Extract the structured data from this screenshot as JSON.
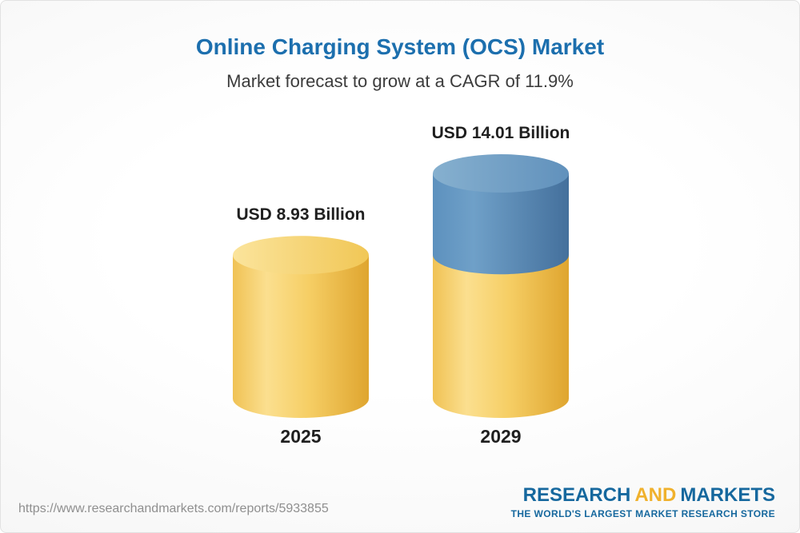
{
  "header": {
    "title": "Online Charging System (OCS) Market",
    "subtitle": "Market forecast to grow at a CAGR of 11.9%"
  },
  "chart_data": {
    "type": "bar",
    "variant": "3d-cylinder-stacked",
    "title": "Online Charging System (OCS) Market",
    "subtitle": "Market forecast to grow at a CAGR of 11.9%",
    "categories": [
      "2025",
      "2029"
    ],
    "values": [
      8.93,
      14.01
    ],
    "value_labels": [
      "USD 8.93 Billion",
      "USD 14.01 Billion"
    ],
    "unit": "USD Billion",
    "cagr_percent": 11.9,
    "ylim": [
      0,
      14.01
    ],
    "grid": false,
    "legend": false,
    "colors": {
      "base_segment": "#F5CB60",
      "growth_segment": "#5C8FBC"
    },
    "notes": "The 2029 cylinder is stacked: the lower yellow segment equals the 2025 value and the upper blue segment represents growth up to 14.01."
  },
  "footer": {
    "source_url": "https://www.researchandmarkets.com/reports/5933855",
    "logo": {
      "word1": "RESEARCH",
      "word2": "AND",
      "word3": "MARKETS",
      "tagline": "THE WORLD'S LARGEST MARKET RESEARCH STORE"
    }
  },
  "colors": {
    "title_blue": "#1C6FAE",
    "text_dark": "#3C3C3C",
    "label_dark": "#1F1F1F",
    "url_gray": "#8F8F8F",
    "logo_blue": "#16689E",
    "logo_gold": "#F0B12C"
  }
}
